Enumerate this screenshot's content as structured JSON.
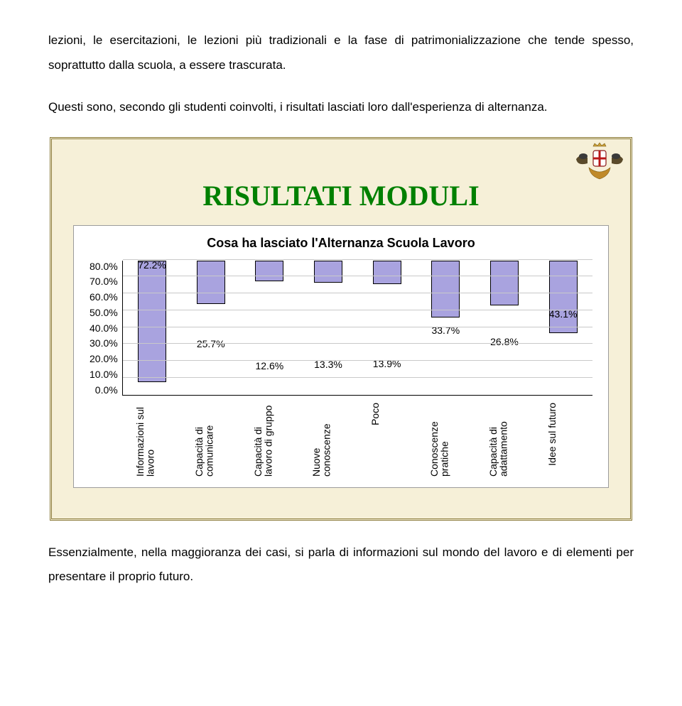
{
  "para1": "lezioni, le esercitazioni, le lezioni più tradizionali e la fase di patrimonializzazione che tende spesso, soprattutto dalla scuola, a essere trascurata.",
  "para2": "Questi sono, secondo gli studenti coinvolti, i risultati lasciati loro dall'esperienza di alternanza.",
  "para3": "Essenzialmente, nella maggioranza dei casi, si parla di informazioni sul mondo del lavoro e di elementi per presentare il proprio futuro.",
  "slide": {
    "title": "RISULTATI MODULI",
    "title_color": "#008000",
    "chart_title": "Cosa ha lasciato l'Alternanza Scuola Lavoro"
  },
  "chart": {
    "type": "bar",
    "y_max": 80,
    "y_step": 10,
    "y_ticks": [
      "80.0%",
      "70.0%",
      "60.0%",
      "50.0%",
      "40.0%",
      "30.0%",
      "20.0%",
      "10.0%",
      "0.0%"
    ],
    "bar_color": "#a9a3df",
    "bar_border": "#000000",
    "categories": [
      {
        "label": "Informazioni sul lavoro",
        "value": 72.2,
        "text": "72.2%"
      },
      {
        "label": "Capacità di comunicare",
        "value": 25.7,
        "text": "25.7%"
      },
      {
        "label": "Capacità di lavoro di gruppo",
        "value": 12.6,
        "text": "12.6%"
      },
      {
        "label": "Nuove conoscenze",
        "value": 13.3,
        "text": "13.3%"
      },
      {
        "label": "Poco",
        "value": 13.9,
        "text": "13.9%"
      },
      {
        "label": "Conoscenze pratiche",
        "value": 33.7,
        "text": "33.7%"
      },
      {
        "label": "Capacità di adattamento",
        "value": 26.8,
        "text": "26.8%"
      },
      {
        "label": "Idee sul futuro",
        "value": 43.1,
        "text": "43.1%"
      }
    ]
  }
}
